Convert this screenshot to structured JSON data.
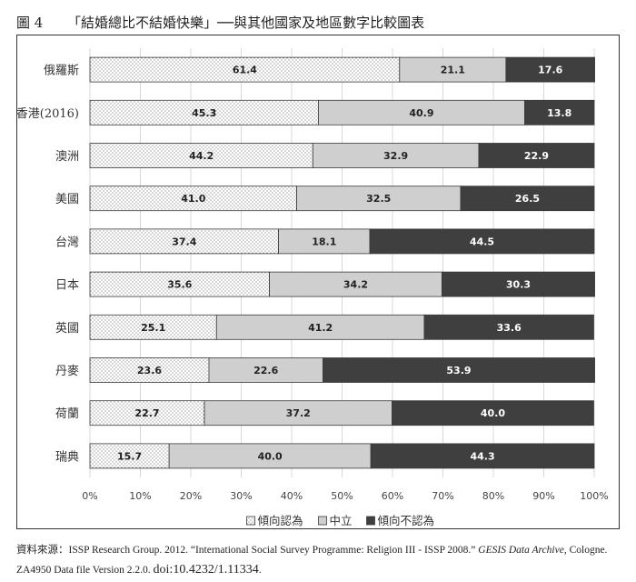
{
  "figure": {
    "number": "圖 4",
    "title": "「結婚總比不結婚快樂」──與其他國家及地區數字比較圖表"
  },
  "source": {
    "prefix": "資料來源：ISSP Research Group. 2012. “International Social Survey Programme: Religion III - ISSP 2008.” ",
    "archive": "GESIS Data Archive,",
    "suffix": " Cologne.",
    "line2": "ZA4950 Data file Version 2.2.0. ",
    "doi": "doi:10.4232/1.11334",
    "end": "."
  },
  "colors": {
    "agree_fill": "#ffffff",
    "agree_dots": "#333333",
    "neutral_fill": "#d0cfcf",
    "disagree_fill": "#3f3f3f",
    "grid": "#d9d9d9"
  },
  "chart_data": {
    "type": "bar",
    "orientation": "horizontal",
    "stacked": true,
    "categories": [
      "俄羅斯",
      "香港(2016)",
      "澳洲",
      "美國",
      "台灣",
      "日本",
      "英國",
      "丹麥",
      "荷蘭",
      "瑞典"
    ],
    "series": [
      {
        "name": "傾向認為",
        "values": [
          61.4,
          45.3,
          44.2,
          41.0,
          37.4,
          35.6,
          25.1,
          23.6,
          22.7,
          15.7
        ]
      },
      {
        "name": "中立",
        "values": [
          21.1,
          40.9,
          32.9,
          32.5,
          18.1,
          34.2,
          41.2,
          22.6,
          37.2,
          40.0
        ]
      },
      {
        "name": "傾向不認為",
        "values": [
          17.6,
          13.8,
          22.9,
          26.5,
          44.5,
          30.3,
          33.6,
          53.9,
          40.0,
          44.3
        ]
      }
    ],
    "xlim": [
      0,
      100
    ],
    "xticks": [
      "0%",
      "10%",
      "20%",
      "30%",
      "40%",
      "50%",
      "60%",
      "70%",
      "80%",
      "90%",
      "100%"
    ],
    "grid": true,
    "legend_position": "bottom"
  }
}
